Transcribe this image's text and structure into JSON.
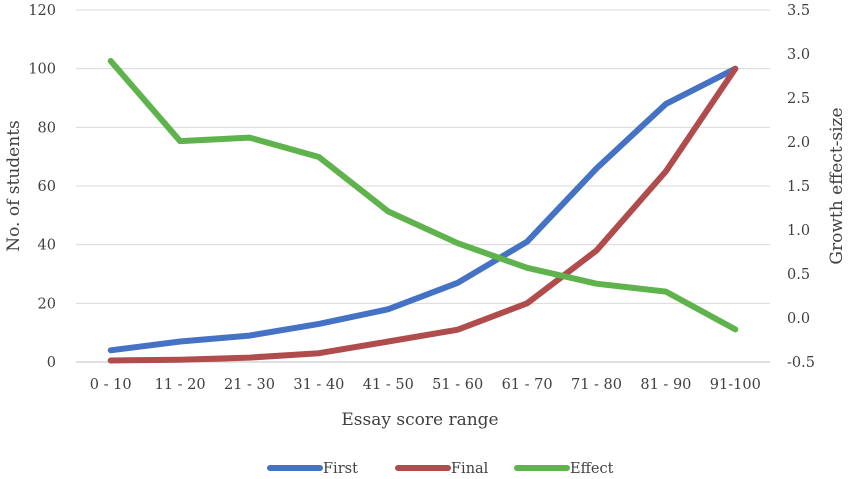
{
  "chart_data": {
    "type": "line",
    "categories": [
      "0 - 10",
      "11 - 20",
      "21 - 30",
      "31 - 40",
      "41 - 50",
      "51 - 60",
      "61 - 70",
      "71 - 80",
      "81 - 90",
      "91-100"
    ],
    "series": [
      {
        "name": "First",
        "axis": "left",
        "color": "#4472C4",
        "values": [
          4,
          7,
          9,
          13,
          18,
          27,
          41,
          66,
          88,
          100
        ]
      },
      {
        "name": "Final",
        "axis": "left",
        "color": "#B04C4C",
        "values": [
          0.5,
          0.8,
          1.5,
          3,
          7,
          11,
          20,
          38,
          65,
          100
        ]
      },
      {
        "name": "Effect",
        "axis": "right",
        "color": "#5FB34C",
        "values": [
          2.92,
          2.01,
          2.05,
          1.83,
          1.21,
          0.85,
          0.57,
          0.39,
          0.3,
          -0.13
        ]
      }
    ],
    "xlabel": "Essay score  range",
    "ylabel": "No. of students",
    "y2label": "Growth effect-size",
    "ylim": [
      0,
      120
    ],
    "y2lim": [
      -0.5,
      3.5
    ],
    "yticks": [
      "0",
      "20",
      "40",
      "60",
      "80",
      "100",
      "120"
    ],
    "y2ticks": [
      "-0.5",
      "0.0",
      "0.5",
      "1.0",
      "1.5",
      "2.0",
      "2.5",
      "3.0",
      "3.5"
    ],
    "grid": true,
    "legend_position": "bottom"
  }
}
